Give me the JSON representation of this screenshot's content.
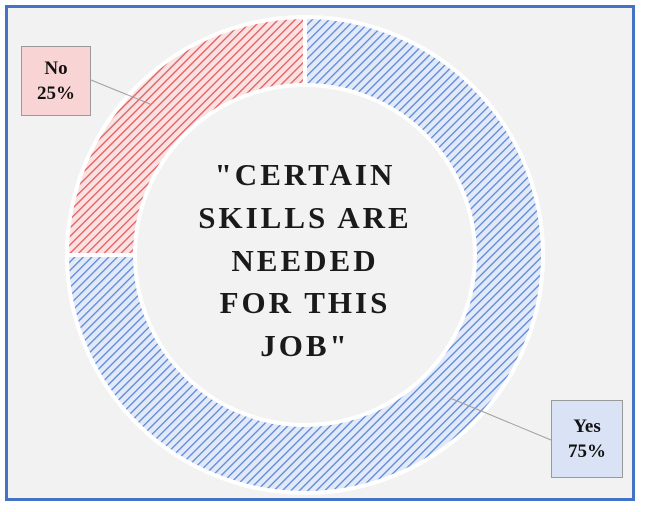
{
  "chart_data": {
    "type": "pie",
    "variant": "doughnut",
    "center_text": [
      "\"CERTAIN",
      "SKILLS ARE",
      "NEEDED",
      "FOR THIS",
      "JOB\""
    ],
    "slices": [
      {
        "label": "Yes",
        "value": 75,
        "value_label": "75%",
        "color": "#6d91d8"
      },
      {
        "label": "No",
        "value": 25,
        "value_label": "25%",
        "color": "#e36c6c"
      }
    ],
    "colors": {
      "frame": "#4472c4",
      "background": "#f2f2f2"
    }
  }
}
